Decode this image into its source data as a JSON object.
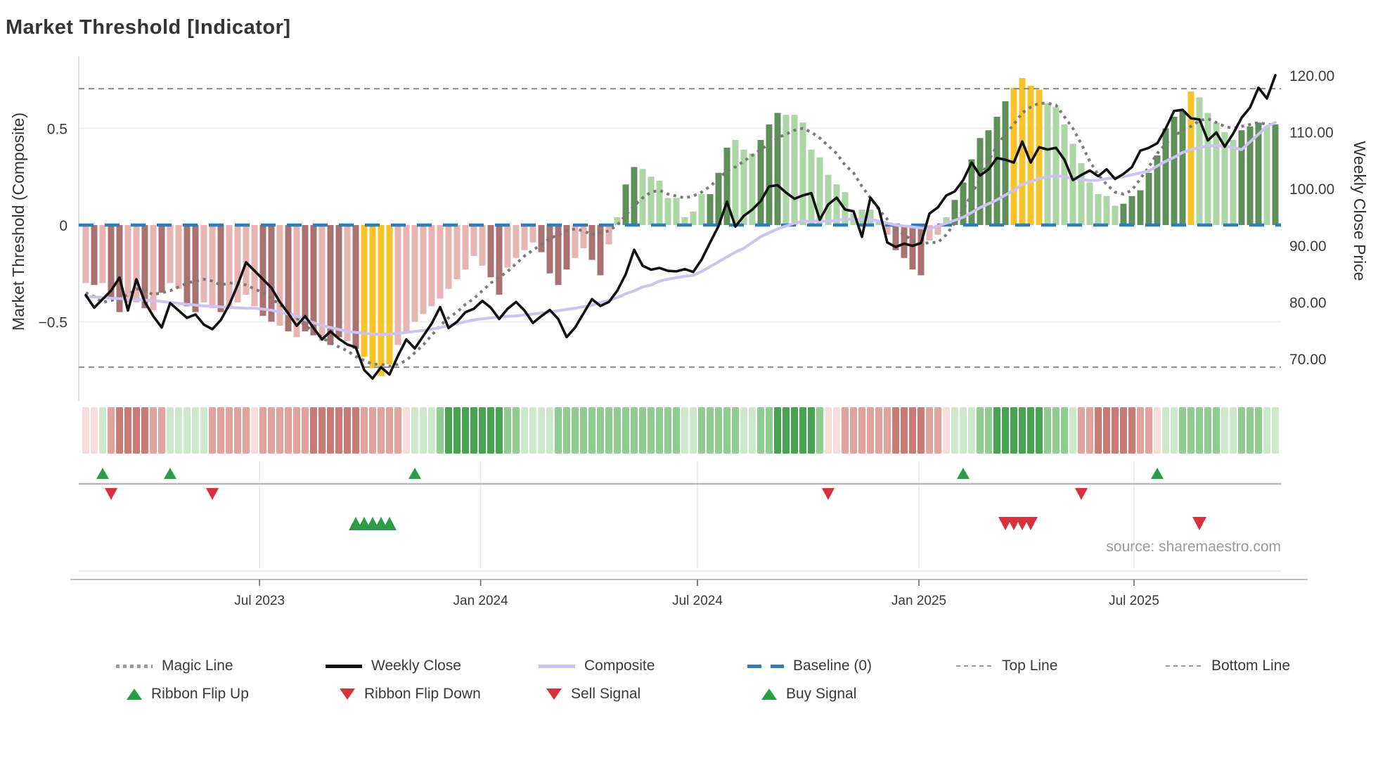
{
  "title": "Market Threshold [Indicator]",
  "source_note": "source: sharemaestro.com",
  "chart_data": {
    "type": "combo-bar-line",
    "weeks": 142,
    "left_axis": {
      "label": "Market Threshold (Composite)",
      "tick_labels": [
        "0.5",
        "0",
        "−0.5"
      ],
      "tick_values": [
        0.5,
        0,
        -0.5
      ],
      "range": [
        -0.87,
        0.87
      ],
      "grid": "on at ±0.5"
    },
    "right_axis": {
      "label": "Weekly Close Price",
      "tick_labels": [
        "120.00",
        "110.00",
        "100.00",
        "90.00",
        "80.00",
        "70.00"
      ],
      "tick_values": [
        120,
        110,
        100,
        90,
        80,
        70
      ],
      "range": [
        62.5,
        123.5
      ]
    },
    "x_axis": {
      "tick_labels": [
        "Jul 2023",
        "Jan 2024",
        "Jul 2024",
        "Jan 2025",
        "Jul 2025"
      ],
      "tick_weeks": [
        20.6,
        46.8,
        72.5,
        98.75,
        124.25
      ]
    },
    "baseline_value": 0,
    "top_line_value": 0.705,
    "bottom_line_value": -0.735,
    "composite_bars": {
      "values": [
        -0.3,
        -0.31,
        -0.3,
        -0.38,
        -0.45,
        -0.4,
        -0.4,
        -0.43,
        -0.44,
        -0.35,
        -0.3,
        -0.33,
        -0.42,
        -0.45,
        -0.4,
        -0.43,
        -0.45,
        -0.43,
        -0.4,
        -0.36,
        -0.42,
        -0.47,
        -0.5,
        -0.52,
        -0.55,
        -0.58,
        -0.55,
        -0.57,
        -0.6,
        -0.62,
        -0.58,
        -0.6,
        -0.64,
        -0.68,
        -0.74,
        -0.78,
        -0.72,
        -0.62,
        -0.55,
        -0.5,
        -0.46,
        -0.42,
        -0.38,
        -0.33,
        -0.28,
        -0.23,
        -0.16,
        -0.21,
        -0.27,
        -0.36,
        -0.22,
        -0.17,
        -0.13,
        -0.09,
        -0.14,
        -0.25,
        -0.31,
        -0.23,
        -0.17,
        -0.12,
        -0.18,
        -0.26,
        -0.1,
        0.04,
        0.21,
        0.3,
        0.29,
        0.25,
        0.23,
        0.14,
        0.14,
        0.04,
        0.07,
        0.16,
        0.16,
        0.27,
        0.4,
        0.44,
        0.39,
        0.37,
        0.44,
        0.52,
        0.58,
        0.57,
        0.57,
        0.53,
        0.39,
        0.35,
        0.26,
        0.21,
        0.17,
        0.06,
        0.08,
        0.08,
        0.02,
        -0.05,
        -0.13,
        -0.17,
        -0.23,
        -0.26,
        -0.08,
        -0.05,
        0.04,
        0.13,
        0.22,
        0.34,
        0.45,
        0.49,
        0.56,
        0.64,
        0.71,
        0.76,
        0.72,
        0.7,
        0.63,
        0.61,
        0.52,
        0.42,
        0.32,
        0.22,
        0.16,
        0.15,
        0.1,
        0.11,
        0.15,
        0.18,
        0.27,
        0.36,
        0.5,
        0.56,
        0.59,
        0.69,
        0.66,
        0.58,
        0.53,
        0.48,
        0.44,
        0.49,
        0.51,
        0.53,
        0.51,
        0.52
      ],
      "colors": [
        "p",
        "P",
        "p",
        "P",
        "P",
        "p",
        "p",
        "P",
        "p",
        "P",
        "p",
        "p",
        "P",
        "P",
        "p",
        "p",
        "P",
        "p",
        "p",
        "p",
        "p",
        "P",
        "P",
        "p",
        "P",
        "p",
        "P",
        "P",
        "p",
        "P",
        "P",
        "p",
        "P",
        "y",
        "y",
        "y",
        "y",
        "p",
        "p",
        "p",
        "p",
        "p",
        "p",
        "p",
        "p",
        "p",
        "p",
        "p",
        "P",
        "P",
        "p",
        "p",
        "p",
        "p",
        "P",
        "P",
        "P",
        "P",
        "p",
        "p",
        "P",
        "P",
        "p",
        "g",
        "G",
        "G",
        "g",
        "g",
        "g",
        "g",
        "g",
        "g",
        "g",
        "g",
        "G",
        "G",
        "G",
        "g",
        "g",
        "g",
        "G",
        "G",
        "G",
        "g",
        "g",
        "g",
        "g",
        "g",
        "g",
        "g",
        "g",
        "g",
        "g",
        "g",
        "g",
        "p",
        "P",
        "P",
        "P",
        "P",
        "p",
        "p",
        "g",
        "G",
        "G",
        "G",
        "G",
        "G",
        "G",
        "G",
        "y",
        "y",
        "y",
        "y",
        "g",
        "g",
        "g",
        "g",
        "g",
        "g",
        "g",
        "g",
        "g",
        "G",
        "G",
        "G",
        "G",
        "G",
        "G",
        "G",
        "G",
        "y",
        "g",
        "g",
        "g",
        "g",
        "g",
        "G",
        "G",
        "G",
        "g",
        "G"
      ]
    },
    "weekly_close": [
      81.2,
      79.0,
      80.5,
      82.0,
      84.3,
      78.5,
      84.0,
      80.0,
      77.5,
      75.5,
      79.8,
      78.5,
      77.2,
      77.8,
      76.0,
      75.2,
      76.8,
      79.5,
      83.0,
      87.0,
      85.5,
      84.0,
      82.5,
      80.0,
      78.0,
      75.8,
      77.5,
      75.4,
      73.4,
      74.8,
      73.5,
      72.5,
      72.0,
      68.0,
      66.5,
      68.5,
      67.2,
      70.5,
      73.4,
      71.8,
      74.0,
      76.2,
      79.1,
      75.4,
      76.5,
      78.2,
      78.8,
      80.2,
      79.0,
      77.0,
      78.8,
      80.0,
      78.5,
      76.3,
      77.5,
      78.6,
      77.0,
      73.8,
      75.5,
      78.0,
      80.5,
      79.3,
      80.0,
      82.0,
      84.9,
      89.2,
      86.4,
      85.7,
      86.0,
      85.5,
      85.4,
      85.8,
      85.3,
      87.5,
      90.5,
      93.4,
      97.7,
      93.3,
      95.2,
      96.3,
      97.8,
      100.4,
      100.6,
      99.3,
      98.2,
      98.8,
      99.2,
      94.5,
      97.2,
      98.4,
      96.3,
      96.0,
      91.5,
      98.4,
      96.5,
      90.5,
      89.7,
      90.3,
      89.9,
      90.4,
      95.6,
      96.7,
      98.8,
      99.5,
      101.5,
      104.6,
      102.3,
      103.4,
      105.4,
      105.1,
      104.6,
      108.3,
      104.6,
      107.3,
      106.9,
      107.2,
      105.1,
      101.5,
      102.4,
      103.2,
      102.2,
      103.4,
      101.7,
      102.6,
      103.8,
      106.7,
      107.2,
      108.0,
      110.6,
      113.7,
      113.9,
      112.4,
      112.2,
      108.5,
      109.9,
      107.4,
      109.7,
      112.5,
      114.3,
      117.8,
      115.9,
      120.0
    ],
    "composite_line": [
      -0.37,
      -0.372,
      -0.375,
      -0.378,
      -0.38,
      -0.382,
      -0.385,
      -0.388,
      -0.39,
      -0.395,
      -0.4,
      -0.405,
      -0.41,
      -0.414,
      -0.418,
      -0.42,
      -0.423,
      -0.426,
      -0.428,
      -0.43,
      -0.43,
      -0.435,
      -0.44,
      -0.45,
      -0.46,
      -0.47,
      -0.49,
      -0.505,
      -0.52,
      -0.53,
      -0.54,
      -0.55,
      -0.555,
      -0.56,
      -0.563,
      -0.565,
      -0.563,
      -0.56,
      -0.555,
      -0.55,
      -0.545,
      -0.538,
      -0.53,
      -0.52,
      -0.51,
      -0.5,
      -0.49,
      -0.485,
      -0.48,
      -0.475,
      -0.472,
      -0.47,
      -0.465,
      -0.46,
      -0.455,
      -0.45,
      -0.443,
      -0.436,
      -0.43,
      -0.422,
      -0.415,
      -0.4,
      -0.39,
      -0.375,
      -0.355,
      -0.34,
      -0.32,
      -0.31,
      -0.29,
      -0.28,
      -0.272,
      -0.265,
      -0.26,
      -0.24,
      -0.215,
      -0.19,
      -0.165,
      -0.14,
      -0.12,
      -0.09,
      -0.06,
      -0.04,
      -0.02,
      -0.005,
      0.01,
      0.02,
      0.02,
      0.02,
      0.02,
      0.025,
      0.03,
      0.03,
      0.03,
      0.03,
      0.02,
      0.01,
      0.0,
      -0.005,
      -0.01,
      -0.015,
      -0.02,
      -0.005,
      0.01,
      0.025,
      0.04,
      0.065,
      0.09,
      0.11,
      0.13,
      0.155,
      0.18,
      0.21,
      0.225,
      0.24,
      0.25,
      0.255,
      0.25,
      0.24,
      0.235,
      0.23,
      0.232,
      0.24,
      0.245,
      0.25,
      0.26,
      0.27,
      0.28,
      0.305,
      0.33,
      0.35,
      0.375,
      0.39,
      0.4,
      0.41,
      0.41,
      0.41,
      0.4,
      0.39,
      0.43,
      0.47,
      0.51,
      0.53
    ],
    "magic_line": [
      -0.35,
      -0.37,
      -0.4,
      -0.39,
      -0.38,
      -0.36,
      -0.33,
      -0.34,
      -0.36,
      -0.35,
      -0.34,
      -0.32,
      -0.3,
      -0.29,
      -0.28,
      -0.29,
      -0.31,
      -0.3,
      -0.3,
      -0.31,
      -0.33,
      -0.35,
      -0.38,
      -0.41,
      -0.45,
      -0.48,
      -0.52,
      -0.55,
      -0.58,
      -0.61,
      -0.63,
      -0.65,
      -0.68,
      -0.7,
      -0.72,
      -0.72,
      -0.73,
      -0.72,
      -0.7,
      -0.66,
      -0.62,
      -0.57,
      -0.52,
      -0.48,
      -0.45,
      -0.41,
      -0.38,
      -0.34,
      -0.3,
      -0.27,
      -0.24,
      -0.2,
      -0.16,
      -0.13,
      -0.1,
      -0.07,
      -0.05,
      -0.03,
      -0.02,
      -0.03,
      -0.05,
      -0.04,
      -0.03,
      0.0,
      0.05,
      0.1,
      0.14,
      0.17,
      0.18,
      0.16,
      0.15,
      0.14,
      0.15,
      0.17,
      0.2,
      0.24,
      0.28,
      0.3,
      0.33,
      0.36,
      0.39,
      0.42,
      0.45,
      0.47,
      0.49,
      0.5,
      0.48,
      0.45,
      0.41,
      0.37,
      0.31,
      0.27,
      0.2,
      0.14,
      0.08,
      0.03,
      -0.02,
      -0.05,
      -0.08,
      -0.1,
      -0.09,
      -0.09,
      -0.05,
      0.01,
      0.08,
      0.16,
      0.24,
      0.33,
      0.41,
      0.47,
      0.52,
      0.58,
      0.61,
      0.63,
      0.63,
      0.62,
      0.56,
      0.5,
      0.42,
      0.33,
      0.26,
      0.21,
      0.17,
      0.16,
      0.18,
      0.24,
      0.3,
      0.37,
      0.42,
      0.46,
      0.49,
      0.51,
      0.54,
      0.55,
      0.53,
      0.51,
      0.5,
      0.51,
      0.52,
      0.53,
      0.52,
      0.52
    ],
    "ribbon": [
      "p1",
      "p1",
      "g1",
      "p2",
      "p3",
      "p3",
      "p3",
      "p3",
      "p2",
      "p2",
      "g1",
      "g1",
      "g1",
      "g1",
      "g1",
      "p2",
      "p2",
      "p2",
      "p2",
      "p2",
      "p1",
      "p2",
      "p2",
      "p2",
      "p2",
      "p2",
      "p2",
      "p3",
      "p3",
      "p3",
      "p3",
      "p3",
      "p3",
      "p2",
      "p2",
      "p2",
      "p2",
      "p2",
      "p1",
      "g1",
      "g1",
      "g1",
      "g2",
      "g3",
      "g3",
      "g3",
      "g3",
      "g3",
      "g3",
      "g3",
      "g2",
      "g2",
      "g1",
      "g1",
      "g1",
      "g1",
      "g2",
      "g2",
      "g2",
      "g2",
      "g2",
      "g2",
      "g2",
      "g2",
      "g2",
      "g2",
      "g2",
      "g2",
      "g2",
      "g2",
      "g2",
      "g1",
      "g1",
      "g2",
      "g2",
      "g2",
      "g2",
      "g2",
      "g1",
      "g1",
      "g2",
      "g2",
      "g3",
      "g3",
      "g3",
      "g3",
      "g3",
      "g2",
      "p1",
      "p1",
      "p2",
      "p2",
      "p2",
      "p2",
      "p2",
      "p2",
      "p3",
      "p3",
      "p3",
      "p3",
      "p2",
      "p2",
      "p1",
      "g1",
      "g1",
      "g1",
      "g2",
      "g2",
      "g3",
      "g3",
      "g3",
      "g3",
      "g3",
      "g3",
      "g2",
      "g2",
      "g2",
      "g1",
      "p2",
      "p2",
      "p3",
      "p3",
      "p3",
      "p3",
      "p3",
      "p2",
      "p2",
      "p1",
      "g1",
      "g1",
      "g2",
      "g2",
      "g2",
      "g2",
      "g2",
      "g1",
      "g1",
      "g2",
      "g2",
      "g2",
      "g1",
      "g1"
    ],
    "signals": {
      "ribbon_flip_up_weeks": [
        2,
        10,
        39,
        104,
        127
      ],
      "ribbon_flip_down_weeks": [
        3,
        15,
        88,
        118
      ],
      "buy_weeks": [
        32,
        33,
        34,
        35,
        36
      ],
      "sell_weeks": [
        109,
        110,
        111,
        112,
        132
      ]
    }
  },
  "legend": {
    "row1": [
      {
        "id": "magic-line",
        "label": "Magic Line",
        "swatch": "dotted-gray"
      },
      {
        "id": "weekly-close",
        "label": "Weekly Close",
        "swatch": "solid-black"
      },
      {
        "id": "composite",
        "label": "Composite",
        "swatch": "solid-lavender"
      },
      {
        "id": "baseline",
        "label": "Baseline (0)",
        "swatch": "dashed-blue"
      },
      {
        "id": "top-line",
        "label": "Top Line",
        "swatch": "dashed-gray-thin"
      },
      {
        "id": "bottom-line",
        "label": "Bottom Line",
        "swatch": "dashed-gray-thin"
      }
    ],
    "row2": [
      {
        "id": "ribbon-flip-up",
        "label": "Ribbon Flip Up",
        "swatch": "triangle-up-green"
      },
      {
        "id": "ribbon-flip-down",
        "label": "Ribbon Flip Down",
        "swatch": "triangle-down-red"
      },
      {
        "id": "sell-signal",
        "label": "Sell Signal",
        "swatch": "triangle-down-red"
      },
      {
        "id": "buy-signal",
        "label": "Buy Signal",
        "swatch": "triangle-up-green"
      }
    ]
  },
  "palette": {
    "bar_light_pink": "#e7b5b1",
    "bar_dark_pink": "#a97170",
    "bar_yellow": "#f6c42a",
    "bar_light_green": "#acd6a6",
    "bar_dark_green": "#5f9059",
    "ribbon_p1": "#f5dedc",
    "ribbon_p2": "#e2a39f",
    "ribbon_p3": "#cb7b76",
    "ribbon_g1": "#cfe9cd",
    "ribbon_g2": "#90cb92",
    "ribbon_g3": "#47a34f",
    "weekly_close": "#111111",
    "composite": "#cdc2f0",
    "magic": "#7a7a7a",
    "baseline": "#2b7fbe",
    "guide_dash": "#8a8a8a",
    "signal_green": "#2a9d46",
    "signal_red": "#d7323e",
    "grid": "#ededf2",
    "axis_text": "#3a3a3a",
    "muted_text": "#9a9a9a"
  }
}
